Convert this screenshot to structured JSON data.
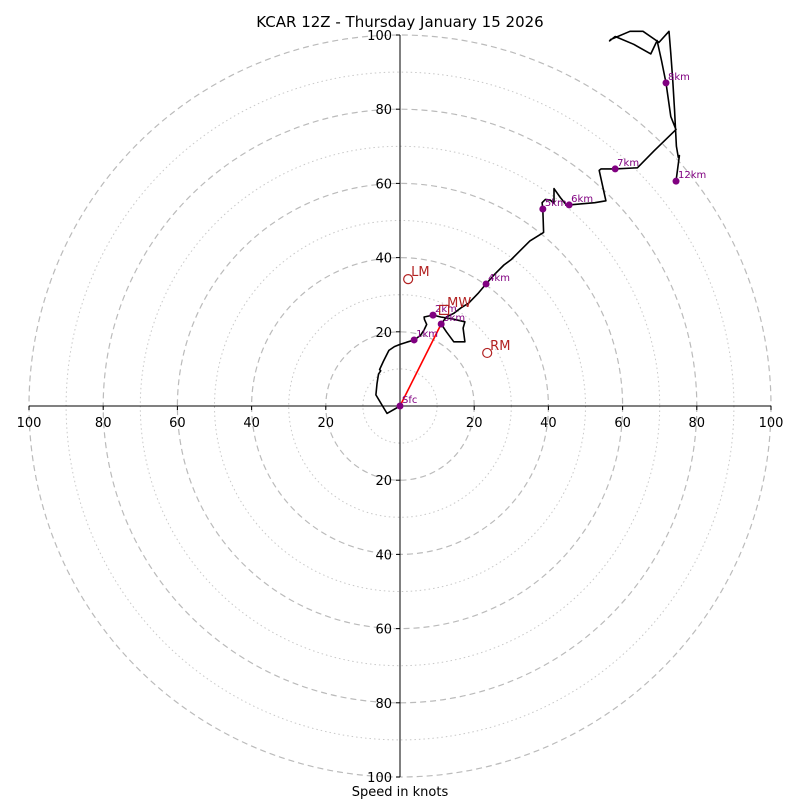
{
  "chart_data": {
    "type": "hodograph",
    "title": "KCAR 12Z - Thursday January 15 2026",
    "xlabel": "Speed in knots",
    "range": [
      -100,
      100
    ],
    "ring_major": [
      20,
      40,
      60,
      80,
      100
    ],
    "ring_minor": [
      10,
      30,
      50,
      70,
      90
    ],
    "tick_labels": [
      "100",
      "80",
      "60",
      "40",
      "20",
      "20",
      "40",
      "60",
      "80",
      "100"
    ],
    "trace_color": "#000000",
    "marker_color": "#800080",
    "motion_color": "#b22222",
    "shear_color": "#ff0000",
    "trace": [
      [
        0,
        0
      ],
      [
        -3.5,
        -2
      ],
      [
        -6.5,
        3
      ],
      [
        -6.2,
        6
      ],
      [
        -5.8,
        8.6
      ],
      [
        -5.2,
        9.5
      ],
      [
        -5.5,
        9.8
      ],
      [
        -4.5,
        12
      ],
      [
        -3,
        15
      ],
      [
        -1.5,
        16
      ],
      [
        0,
        16.6
      ],
      [
        1.8,
        17.2
      ],
      [
        3.8,
        17.8
      ],
      [
        5.5,
        19
      ],
      [
        6.5,
        20.5
      ],
      [
        7.2,
        22
      ],
      [
        6.6,
        23.3
      ],
      [
        6.5,
        24
      ],
      [
        8.9,
        24.5
      ],
      [
        11,
        24
      ],
      [
        14,
        23.5
      ],
      [
        17.5,
        22.7
      ],
      [
        17,
        21
      ],
      [
        17.5,
        17.3
      ],
      [
        14.5,
        17.3
      ],
      [
        12.5,
        20
      ],
      [
        11.1,
        22.1
      ],
      [
        12.5,
        24
      ],
      [
        14.5,
        25
      ],
      [
        16.5,
        26.5
      ],
      [
        18.5,
        27.7
      ],
      [
        21,
        30.3
      ],
      [
        23.2,
        32.9
      ],
      [
        25.5,
        35.5
      ],
      [
        28,
        38
      ],
      [
        30,
        39.5
      ],
      [
        32.5,
        42
      ],
      [
        35,
        44.5
      ],
      [
        38.7,
        46.8
      ],
      [
        38.6,
        50
      ],
      [
        38.5,
        53.1
      ],
      [
        38.3,
        54.8
      ],
      [
        39.2,
        55.7
      ],
      [
        40.5,
        55.5
      ],
      [
        41.5,
        54.6
      ],
      [
        41.5,
        55.8
      ],
      [
        41.5,
        58.6
      ],
      [
        43.2,
        56.2
      ],
      [
        45,
        54
      ],
      [
        45.6,
        54.2
      ],
      [
        49,
        54.5
      ],
      [
        52.5,
        54.8
      ],
      [
        55.5,
        55.3
      ],
      [
        53.7,
        63.5
      ],
      [
        54.2,
        63.9
      ],
      [
        58,
        63.9
      ],
      [
        64,
        64.2
      ],
      [
        68.5,
        68.8
      ],
      [
        74.4,
        74.5
      ],
      [
        73,
        78
      ],
      [
        71.7,
        87.1
      ],
      [
        70.5,
        93
      ],
      [
        69.3,
        98.5
      ],
      [
        67.6,
        94.9
      ],
      [
        63,
        97.5
      ],
      [
        58,
        99.6
      ],
      [
        56.5,
        98.4
      ],
      [
        56.8,
        98.8
      ],
      [
        62,
        101
      ],
      [
        65.5,
        101
      ],
      [
        69.8,
        98
      ],
      [
        72.5,
        101
      ],
      [
        73,
        95
      ],
      [
        73.5,
        88
      ],
      [
        74,
        80
      ],
      [
        74.5,
        70
      ],
      [
        75,
        67
      ],
      [
        75.3,
        67.5
      ],
      [
        74.4,
        60.6
      ]
    ],
    "height_markers": [
      {
        "label": "Sfc",
        "u": 0,
        "v": 0
      },
      {
        "label": "1km",
        "u": 3.8,
        "v": 17.8
      },
      {
        "label": "2km",
        "u": 8.9,
        "v": 24.5
      },
      {
        "label": "3km",
        "u": 11.1,
        "v": 22.1
      },
      {
        "label": "4km",
        "u": 23.2,
        "v": 32.9
      },
      {
        "label": "5km",
        "u": 38.5,
        "v": 53.1
      },
      {
        "label": "6km",
        "u": 45.6,
        "v": 54.2
      },
      {
        "label": "7km",
        "u": 58.0,
        "v": 63.9
      },
      {
        "label": "8km",
        "u": 71.7,
        "v": 87.1
      },
      {
        "label": "12km",
        "u": 74.4,
        "v": 60.6
      }
    ],
    "storm_motions": [
      {
        "label": "LM",
        "u": 2.2,
        "v": 34.2,
        "shape": "circle"
      },
      {
        "label": "RM",
        "u": 23.5,
        "v": 14.3,
        "shape": "circle"
      },
      {
        "label": "MW",
        "u": 11.9,
        "v": 25.9,
        "shape": "square"
      }
    ],
    "shear_vector": {
      "from": [
        0,
        0
      ],
      "to": [
        11.1,
        22.1
      ]
    }
  }
}
